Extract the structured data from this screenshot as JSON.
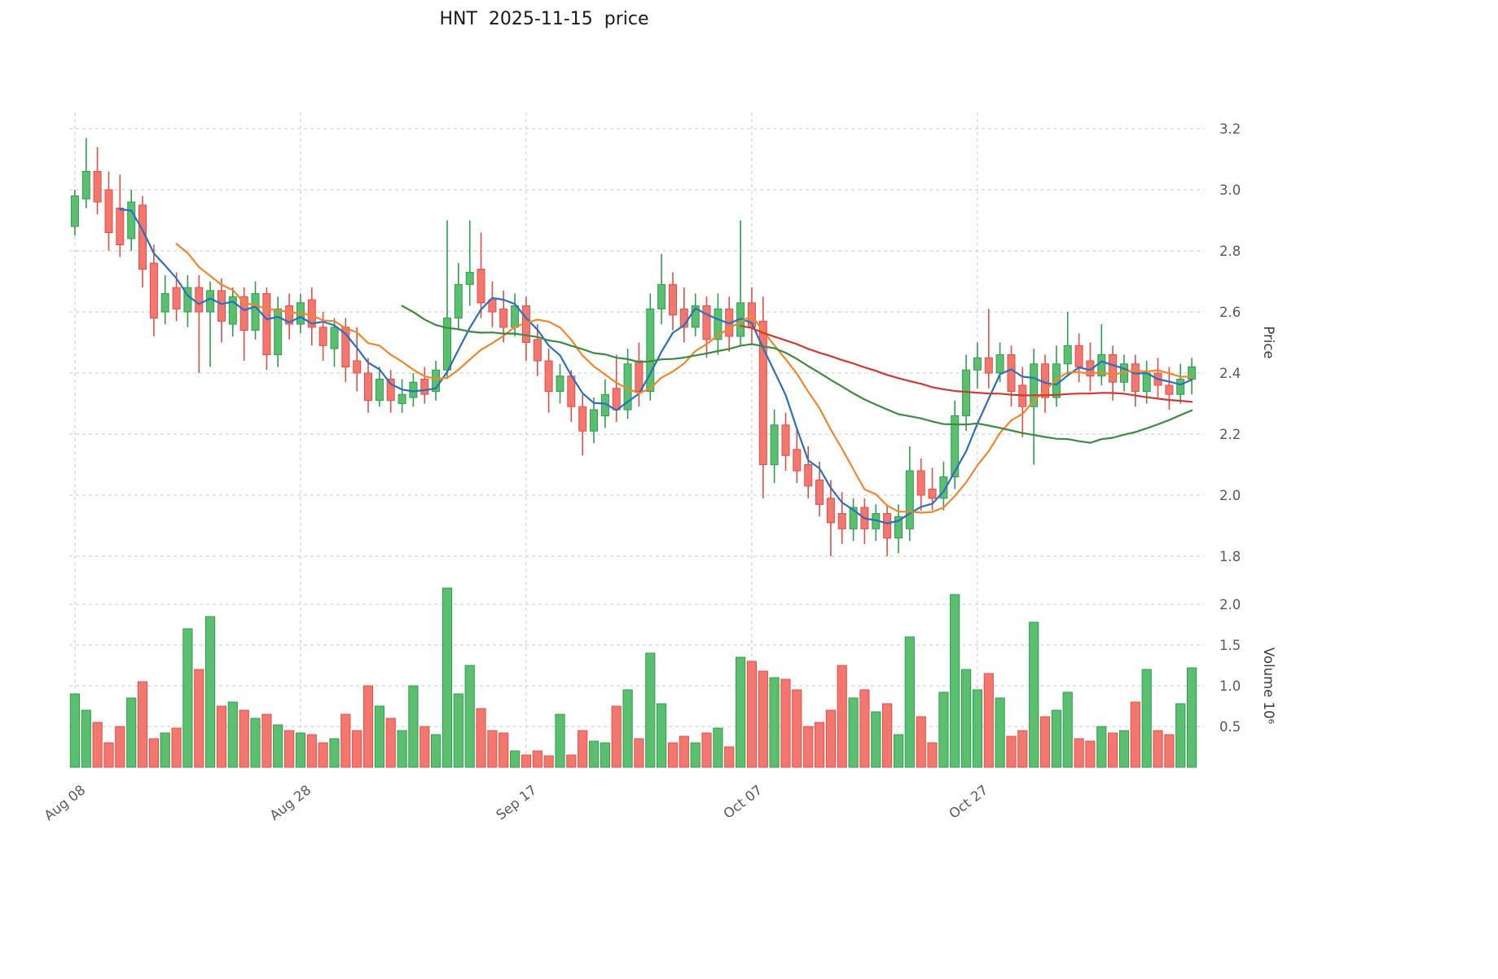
{
  "chart_data": {
    "type": "candlestick",
    "title": "HNT  2025-11-15  price",
    "legend": "none",
    "grid": "dashed",
    "price_axis": {
      "label": "Price",
      "side": "right",
      "min": 1.8,
      "max": 3.2,
      "ticks": [
        3.2,
        3.0,
        2.8,
        2.6,
        2.4,
        2.2,
        2.0,
        1.8
      ]
    },
    "volume_axis": {
      "label": "Volume  10⁶",
      "side": "right",
      "unit_exponent": 6,
      "ticks": [
        2.0,
        1.5,
        1.0,
        0.5
      ]
    },
    "x_axis": {
      "tick_labels": [
        {
          "index": 0,
          "label": "Aug 08"
        },
        {
          "index": 20,
          "label": "Aug 28"
        },
        {
          "index": 40,
          "label": "Sep 17"
        },
        {
          "index": 60,
          "label": "Oct 07"
        },
        {
          "index": 80,
          "label": "Oct 27"
        }
      ]
    },
    "colors": {
      "up": "#5abf6e",
      "up_edge": "#2f9e50",
      "down": "#f4776f",
      "down_edge": "#df4f48",
      "grid": "#c9c9c9",
      "tick_text": "#595959",
      "ma_blue": "#2b6fbd",
      "ma_orange": "#f2862c",
      "ma_green": "#3d8b40",
      "ma_red": "#cc3b33"
    },
    "moving_averages": [
      {
        "name": "MA5",
        "window": 5,
        "color": "#2b6fbd"
      },
      {
        "name": "MA10",
        "window": 10,
        "color": "#f2862c"
      },
      {
        "name": "MA30",
        "window": 30,
        "color": "#3d8b40"
      },
      {
        "name": "MA60",
        "window": 60,
        "color": "#cc3b33"
      }
    ],
    "candles": {
      "columns": [
        "date",
        "open",
        "high",
        "low",
        "close",
        "volume_millions"
      ],
      "rows": [
        [
          "2025-08-08",
          2.88,
          3.0,
          2.85,
          2.98,
          0.9
        ],
        [
          "2025-08-09",
          2.97,
          3.17,
          2.94,
          3.06,
          0.7
        ],
        [
          "2025-08-10",
          3.06,
          3.14,
          2.92,
          2.96,
          0.55
        ],
        [
          "2025-08-11",
          3.0,
          3.06,
          2.8,
          2.86,
          0.3
        ],
        [
          "2025-08-12",
          2.94,
          3.05,
          2.78,
          2.82,
          0.5
        ],
        [
          "2025-08-13",
          2.84,
          3.0,
          2.8,
          2.96,
          0.85
        ],
        [
          "2025-08-14",
          2.95,
          2.98,
          2.68,
          2.74,
          1.05
        ],
        [
          "2025-08-15",
          2.76,
          2.82,
          2.52,
          2.58,
          0.35
        ],
        [
          "2025-08-16",
          2.6,
          2.72,
          2.56,
          2.66,
          0.42
        ],
        [
          "2025-08-17",
          2.68,
          2.73,
          2.57,
          2.61,
          0.48
        ],
        [
          "2025-08-18",
          2.6,
          2.72,
          2.55,
          2.68,
          1.7
        ],
        [
          "2025-08-19",
          2.68,
          2.72,
          2.4,
          2.6,
          1.2
        ],
        [
          "2025-08-20",
          2.6,
          2.7,
          2.42,
          2.67,
          1.85
        ],
        [
          "2025-08-21",
          2.67,
          2.71,
          2.5,
          2.57,
          0.75
        ],
        [
          "2025-08-22",
          2.56,
          2.68,
          2.52,
          2.65,
          0.8
        ],
        [
          "2025-08-23",
          2.65,
          2.68,
          2.44,
          2.54,
          0.7
        ],
        [
          "2025-08-24",
          2.54,
          2.7,
          2.51,
          2.66,
          0.6
        ],
        [
          "2025-08-25",
          2.66,
          2.68,
          2.41,
          2.46,
          0.65
        ],
        [
          "2025-08-26",
          2.46,
          2.65,
          2.42,
          2.61,
          0.52
        ],
        [
          "2025-08-27",
          2.62,
          2.66,
          2.51,
          2.56,
          0.45
        ],
        [
          "2025-08-28",
          2.56,
          2.66,
          2.53,
          2.63,
          0.42
        ],
        [
          "2025-08-29",
          2.64,
          2.68,
          2.49,
          2.55,
          0.4
        ],
        [
          "2025-08-30",
          2.55,
          2.6,
          2.44,
          2.49,
          0.3
        ],
        [
          "2025-08-31",
          2.48,
          2.58,
          2.42,
          2.55,
          0.35
        ],
        [
          "2025-09-01",
          2.55,
          2.58,
          2.37,
          2.42,
          0.65
        ],
        [
          "2025-09-02",
          2.44,
          2.55,
          2.34,
          2.4,
          0.45
        ],
        [
          "2025-09-03",
          2.4,
          2.45,
          2.27,
          2.31,
          1.0
        ],
        [
          "2025-09-04",
          2.31,
          2.42,
          2.29,
          2.38,
          0.75
        ],
        [
          "2025-09-05",
          2.38,
          2.41,
          2.27,
          2.31,
          0.6
        ],
        [
          "2025-09-06",
          2.3,
          2.38,
          2.27,
          2.33,
          0.45
        ],
        [
          "2025-09-07",
          2.32,
          2.4,
          2.29,
          2.37,
          1.0
        ],
        [
          "2025-09-08",
          2.38,
          2.42,
          2.3,
          2.33,
          0.5
        ],
        [
          "2025-09-09",
          2.34,
          2.44,
          2.31,
          2.41,
          0.4
        ],
        [
          "2025-09-10",
          2.41,
          2.9,
          2.38,
          2.58,
          2.2
        ],
        [
          "2025-09-11",
          2.58,
          2.76,
          2.54,
          2.69,
          0.9
        ],
        [
          "2025-09-12",
          2.69,
          2.9,
          2.62,
          2.73,
          1.25
        ],
        [
          "2025-09-13",
          2.74,
          2.86,
          2.58,
          2.63,
          0.72
        ],
        [
          "2025-09-14",
          2.64,
          2.7,
          2.55,
          2.6,
          0.45
        ],
        [
          "2025-09-15",
          2.61,
          2.67,
          2.5,
          2.55,
          0.42
        ],
        [
          "2025-09-16",
          2.55,
          2.66,
          2.52,
          2.62,
          0.2
        ],
        [
          "2025-09-17",
          2.62,
          2.65,
          2.44,
          2.5,
          0.15
        ],
        [
          "2025-09-18",
          2.51,
          2.56,
          2.39,
          2.44,
          0.2
        ],
        [
          "2025-09-19",
          2.44,
          2.48,
          2.27,
          2.34,
          0.14
        ],
        [
          "2025-09-20",
          2.34,
          2.43,
          2.3,
          2.39,
          0.65
        ],
        [
          "2025-09-21",
          2.39,
          2.41,
          2.24,
          2.29,
          0.15
        ],
        [
          "2025-09-22",
          2.29,
          2.33,
          2.13,
          2.21,
          0.45
        ],
        [
          "2025-09-23",
          2.21,
          2.32,
          2.17,
          2.28,
          0.32
        ],
        [
          "2025-09-24",
          2.26,
          2.38,
          2.22,
          2.33,
          0.3
        ],
        [
          "2025-09-25",
          2.35,
          2.46,
          2.24,
          2.28,
          0.75
        ],
        [
          "2025-09-26",
          2.28,
          2.48,
          2.25,
          2.43,
          0.95
        ],
        [
          "2025-09-27",
          2.44,
          2.5,
          2.29,
          2.34,
          0.35
        ],
        [
          "2025-09-28",
          2.34,
          2.66,
          2.31,
          2.61,
          1.4
        ],
        [
          "2025-09-29",
          2.61,
          2.79,
          2.56,
          2.69,
          0.78
        ],
        [
          "2025-09-30",
          2.69,
          2.73,
          2.54,
          2.59,
          0.3
        ],
        [
          "2025-10-01",
          2.61,
          2.68,
          2.5,
          2.55,
          0.38
        ],
        [
          "2025-10-02",
          2.55,
          2.66,
          2.52,
          2.62,
          0.3
        ],
        [
          "2025-10-03",
          2.62,
          2.65,
          2.45,
          2.51,
          0.42
        ],
        [
          "2025-10-04",
          2.51,
          2.66,
          2.46,
          2.61,
          0.48
        ],
        [
          "2025-10-05",
          2.61,
          2.65,
          2.47,
          2.52,
          0.25
        ],
        [
          "2025-10-06",
          2.52,
          2.9,
          2.49,
          2.63,
          1.35
        ],
        [
          "2025-10-07",
          2.63,
          2.68,
          2.49,
          2.55,
          1.3
        ],
        [
          "2025-10-08",
          2.57,
          2.65,
          1.99,
          2.1,
          1.18
        ],
        [
          "2025-10-09",
          2.1,
          2.28,
          2.04,
          2.23,
          1.1
        ],
        [
          "2025-10-10",
          2.23,
          2.27,
          2.08,
          2.13,
          1.08
        ],
        [
          "2025-10-11",
          2.15,
          2.22,
          2.04,
          2.08,
          0.95
        ],
        [
          "2025-10-12",
          2.1,
          2.16,
          1.99,
          2.03,
          0.5
        ],
        [
          "2025-10-13",
          2.05,
          2.11,
          1.93,
          1.97,
          0.55
        ],
        [
          "2025-10-14",
          1.99,
          2.05,
          1.8,
          1.91,
          0.7
        ],
        [
          "2025-10-15",
          1.94,
          2.01,
          1.84,
          1.89,
          1.25
        ],
        [
          "2025-10-16",
          1.89,
          1.99,
          1.85,
          1.96,
          0.85
        ],
        [
          "2025-10-17",
          1.96,
          1.99,
          1.84,
          1.89,
          0.95
        ],
        [
          "2025-10-18",
          1.89,
          1.97,
          1.85,
          1.94,
          0.68
        ],
        [
          "2025-10-19",
          1.94,
          1.97,
          1.8,
          1.86,
          0.78
        ],
        [
          "2025-10-20",
          1.86,
          1.97,
          1.81,
          1.93,
          0.4
        ],
        [
          "2025-10-21",
          1.89,
          2.16,
          1.85,
          2.08,
          1.6
        ],
        [
          "2025-10-22",
          2.08,
          2.12,
          1.95,
          2.0,
          0.62
        ],
        [
          "2025-10-23",
          2.02,
          2.09,
          1.95,
          1.99,
          0.3
        ],
        [
          "2025-10-24",
          1.99,
          2.11,
          1.95,
          2.06,
          0.92
        ],
        [
          "2025-10-25",
          2.06,
          2.31,
          2.02,
          2.26,
          2.12
        ],
        [
          "2025-10-26",
          2.26,
          2.46,
          2.21,
          2.41,
          1.2
        ],
        [
          "2025-10-27",
          2.41,
          2.5,
          2.35,
          2.45,
          0.95
        ],
        [
          "2025-10-28",
          2.45,
          2.61,
          2.35,
          2.4,
          1.15
        ],
        [
          "2025-10-29",
          2.4,
          2.5,
          2.37,
          2.46,
          0.85
        ],
        [
          "2025-10-30",
          2.46,
          2.49,
          2.29,
          2.34,
          0.38
        ],
        [
          "2025-10-31",
          2.36,
          2.42,
          2.19,
          2.29,
          0.45
        ],
        [
          "2025-11-01",
          2.29,
          2.48,
          2.1,
          2.43,
          1.78
        ],
        [
          "2025-11-02",
          2.43,
          2.46,
          2.27,
          2.32,
          0.62
        ],
        [
          "2025-11-03",
          2.32,
          2.49,
          2.29,
          2.43,
          0.7
        ],
        [
          "2025-11-04",
          2.43,
          2.6,
          2.39,
          2.49,
          0.92
        ],
        [
          "2025-11-05",
          2.49,
          2.53,
          2.37,
          2.42,
          0.35
        ],
        [
          "2025-11-06",
          2.44,
          2.5,
          2.34,
          2.39,
          0.32
        ],
        [
          "2025-11-07",
          2.39,
          2.56,
          2.36,
          2.46,
          0.5
        ],
        [
          "2025-11-08",
          2.46,
          2.49,
          2.31,
          2.37,
          0.42
        ],
        [
          "2025-11-09",
          2.37,
          2.46,
          2.34,
          2.43,
          0.45
        ],
        [
          "2025-11-10",
          2.43,
          2.46,
          2.29,
          2.34,
          0.8
        ],
        [
          "2025-11-11",
          2.34,
          2.44,
          2.3,
          2.4,
          1.2
        ],
        [
          "2025-11-12",
          2.4,
          2.45,
          2.32,
          2.36,
          0.45
        ],
        [
          "2025-11-13",
          2.36,
          2.42,
          2.28,
          2.33,
          0.4
        ],
        [
          "2025-11-14",
          2.33,
          2.43,
          2.3,
          2.38,
          0.78
        ],
        [
          "2025-11-15",
          2.38,
          2.45,
          2.33,
          2.42,
          1.22
        ]
      ]
    }
  }
}
